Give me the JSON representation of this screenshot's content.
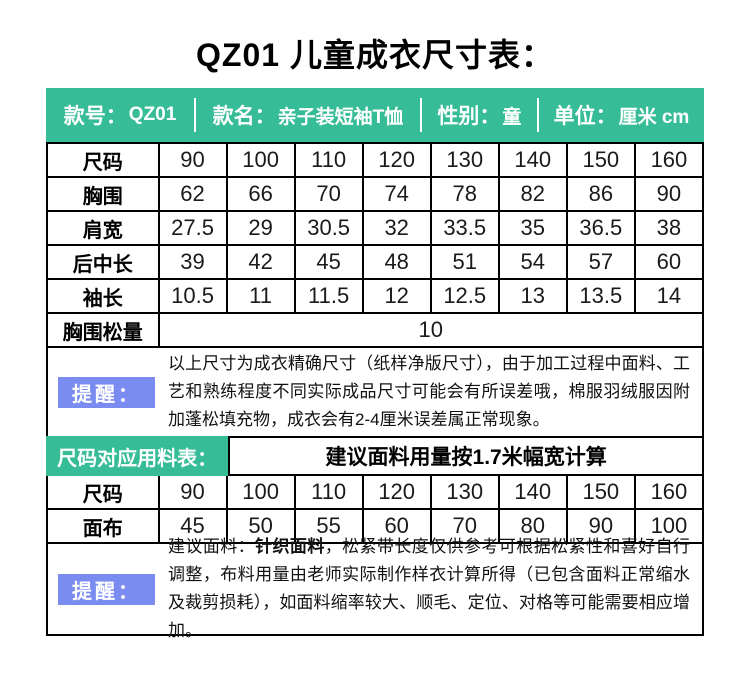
{
  "title": "QZ01 儿童成衣尺寸表：",
  "colors": {
    "brand_green": "#36bd97",
    "reminder_blue": "#7b8cf1",
    "border_black": "#000000"
  },
  "header": {
    "items": [
      {
        "label": "款号：",
        "value": "QZ01"
      },
      {
        "label": "款名：",
        "value": "亲子装短袖T恤"
      },
      {
        "label": "性别：",
        "value": "童"
      },
      {
        "label": "单位：",
        "value": "厘米 cm"
      }
    ]
  },
  "size_table": {
    "rows": [
      {
        "label": "尺码",
        "values": [
          "90",
          "100",
          "110",
          "120",
          "130",
          "140",
          "150",
          "160"
        ]
      },
      {
        "label": "胸围",
        "values": [
          "62",
          "66",
          "70",
          "74",
          "78",
          "82",
          "86",
          "90"
        ]
      },
      {
        "label": "肩宽",
        "values": [
          "27.5",
          "29",
          "30.5",
          "32",
          "33.5",
          "35",
          "36.5",
          "38"
        ]
      },
      {
        "label": "后中长",
        "values": [
          "39",
          "42",
          "45",
          "48",
          "51",
          "54",
          "57",
          "60"
        ]
      },
      {
        "label": "袖长",
        "values": [
          "10.5",
          "11",
          "11.5",
          "12",
          "12.5",
          "13",
          "13.5",
          "14"
        ]
      }
    ],
    "span_row": {
      "label": "胸围松量",
      "value": "10"
    }
  },
  "reminder1": {
    "label": "提醒：",
    "text": "以上尺寸为成衣精确尺寸（纸样净版尺寸），由于加工过程中面料、工艺和熟练程度不同实际成品尺寸可能会有所误差哦，棉服羽绒服因附加蓬松填充物，成衣会有2-4厘米误差属正常现象。"
  },
  "fabric_table": {
    "header_left": "尺码对应用料表：",
    "header_right": "建议面料用量按1.7米幅宽计算",
    "rows": [
      {
        "label": "尺码",
        "values": [
          "90",
          "100",
          "110",
          "120",
          "130",
          "140",
          "150",
          "160"
        ]
      },
      {
        "label": "面布",
        "values": [
          "45",
          "50",
          "55",
          "60",
          "70",
          "80",
          "90",
          "100"
        ]
      }
    ]
  },
  "reminder2": {
    "label": "提醒：",
    "text_prefix": "建议面料：",
    "text_bold": "针织面料",
    "text_rest": "，松紧带长度仅供参考可根据松紧性和喜好自行调整，布料用量由老师实际制作样衣计算所得（已包含面料正常缩水及裁剪损耗），如面料缩率较大、顺毛、定位、对格等可能需要相应增加。"
  }
}
